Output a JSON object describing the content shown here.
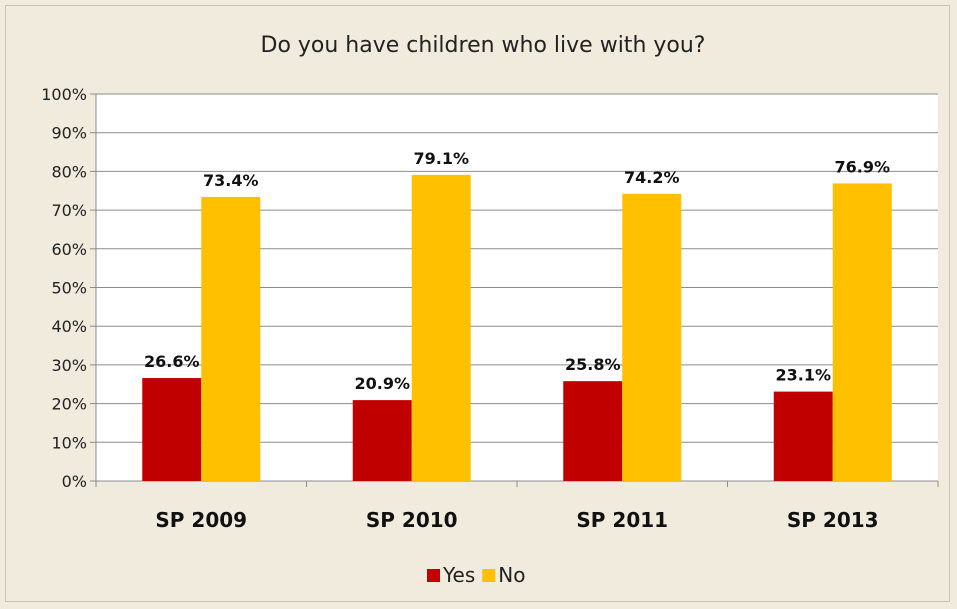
{
  "chart_data": {
    "type": "bar",
    "title": "Do you have children who live with you?",
    "categories": [
      "SP 2009",
      "SP 2010",
      "SP 2011",
      "SP 2013"
    ],
    "series": [
      {
        "name": "Yes",
        "color": "#c00000",
        "values": [
          26.6,
          20.9,
          25.8,
          23.1
        ],
        "labels": [
          "26.6%",
          "20.9%",
          "25.8%",
          "23.1%"
        ]
      },
      {
        "name": "No",
        "color": "#ffc000",
        "values": [
          73.4,
          79.1,
          74.2,
          76.9
        ],
        "labels": [
          "73.4%",
          "79.1%",
          "74.2%",
          "76.9%"
        ]
      }
    ],
    "ylim": [
      0,
      100
    ],
    "yticks": [
      "0%",
      "10%",
      "20%",
      "30%",
      "40%",
      "50%",
      "60%",
      "70%",
      "80%",
      "90%",
      "100%"
    ],
    "grid": true,
    "legend_position": "bottom",
    "plot_background": "#ffffff",
    "chart_background": "#f0ebdc"
  }
}
